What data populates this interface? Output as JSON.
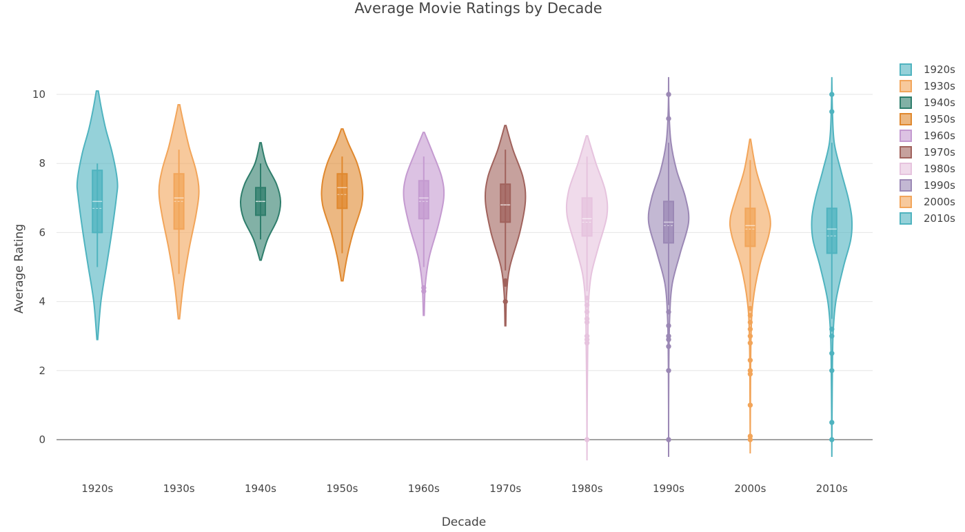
{
  "chart_data": {
    "type": "violin",
    "title": "Average Movie Ratings by Decade",
    "xlabel": "Decade",
    "ylabel": "Average Rating",
    "ylim": [
      -1,
      11
    ],
    "yticks": [
      0,
      2,
      4,
      6,
      8,
      10
    ],
    "grid": true,
    "legend_position": "right",
    "categories": [
      "1920s",
      "1930s",
      "1940s",
      "1950s",
      "1960s",
      "1970s",
      "1980s",
      "1990s",
      "2000s",
      "2010s"
    ],
    "series": [
      {
        "name": "1920s",
        "color": "#4fb3bf",
        "min": 2.9,
        "max": 10.1,
        "q1": 6.0,
        "median": 6.9,
        "q3": 7.8,
        "mean": 6.7,
        "whisker_low": 5.0,
        "whisker_high": 8.0,
        "density": [
          [
            2.9,
            0.02
          ],
          [
            4.0,
            0.18
          ],
          [
            5.0,
            0.45
          ],
          [
            6.0,
            0.72
          ],
          [
            7.0,
            0.95
          ],
          [
            7.5,
            1.0
          ],
          [
            8.3,
            0.75
          ],
          [
            9.0,
            0.42
          ],
          [
            9.6,
            0.2
          ],
          [
            10.1,
            0.05
          ]
        ],
        "outliers": []
      },
      {
        "name": "1930s",
        "color": "#f2a55a",
        "min": 3.5,
        "max": 9.7,
        "q1": 6.1,
        "median": 7.0,
        "q3": 7.7,
        "mean": 6.9,
        "whisker_low": 4.8,
        "whisker_high": 8.4,
        "density": [
          [
            3.5,
            0.03
          ],
          [
            4.5,
            0.22
          ],
          [
            5.5,
            0.5
          ],
          [
            6.5,
            0.85
          ],
          [
            7.2,
            1.0
          ],
          [
            7.8,
            0.85
          ],
          [
            8.5,
            0.5
          ],
          [
            9.2,
            0.22
          ],
          [
            9.7,
            0.04
          ]
        ],
        "outliers": []
      },
      {
        "name": "1940s",
        "color": "#2e7d6b",
        "min": 5.2,
        "max": 8.6,
        "q1": 6.5,
        "median": 6.9,
        "q3": 7.3,
        "mean": 6.9,
        "whisker_low": 5.8,
        "whisker_high": 8.0,
        "density": [
          [
            5.2,
            0.03
          ],
          [
            5.8,
            0.35
          ],
          [
            6.4,
            0.85
          ],
          [
            6.9,
            1.0
          ],
          [
            7.4,
            0.8
          ],
          [
            8.0,
            0.28
          ],
          [
            8.6,
            0.03
          ]
        ],
        "outliers": []
      },
      {
        "name": "1950s",
        "color": "#e0882e",
        "min": 4.6,
        "max": 9.0,
        "q1": 6.7,
        "median": 7.3,
        "q3": 7.7,
        "mean": 7.1,
        "whisker_low": 5.4,
        "whisker_high": 8.2,
        "density": [
          [
            4.6,
            0.04
          ],
          [
            5.3,
            0.25
          ],
          [
            6.0,
            0.55
          ],
          [
            6.8,
            0.98
          ],
          [
            7.4,
            1.0
          ],
          [
            8.0,
            0.75
          ],
          [
            8.6,
            0.3
          ],
          [
            9.0,
            0.04
          ]
        ],
        "outliers": []
      },
      {
        "name": "1960s",
        "color": "#c49ad0",
        "min": 3.6,
        "max": 8.9,
        "q1": 6.4,
        "median": 7.0,
        "q3": 7.5,
        "mean": 6.9,
        "whisker_low": 5.0,
        "whisker_high": 8.2,
        "density": [
          [
            3.6,
            0.02
          ],
          [
            4.5,
            0.08
          ],
          [
            5.3,
            0.28
          ],
          [
            6.2,
            0.72
          ],
          [
            7.0,
            1.0
          ],
          [
            7.6,
            0.9
          ],
          [
            8.3,
            0.45
          ],
          [
            8.9,
            0.03
          ]
        ],
        "outliers": [
          4.4,
          4.3
        ]
      },
      {
        "name": "1970s",
        "color": "#a0625c",
        "min": 3.3,
        "max": 9.1,
        "q1": 6.3,
        "median": 6.8,
        "q3": 7.4,
        "mean": 6.8,
        "whisker_low": 4.9,
        "whisker_high": 8.4,
        "density": [
          [
            3.3,
            0.02
          ],
          [
            4.2,
            0.06
          ],
          [
            5.0,
            0.22
          ],
          [
            6.0,
            0.72
          ],
          [
            6.9,
            1.0
          ],
          [
            7.6,
            0.88
          ],
          [
            8.4,
            0.38
          ],
          [
            9.1,
            0.03
          ]
        ],
        "outliers": [
          4.6,
          4.5,
          4.0
        ]
      },
      {
        "name": "1980s",
        "color": "#e6c3de",
        "min": -0.6,
        "max": 8.8,
        "q1": 5.9,
        "median": 6.4,
        "q3": 7.0,
        "mean": 6.3,
        "whisker_low": 4.3,
        "whisker_high": 8.2,
        "density": [
          [
            -0.6,
            0.0
          ],
          [
            1.0,
            0.01
          ],
          [
            2.8,
            0.04
          ],
          [
            4.0,
            0.08
          ],
          [
            4.8,
            0.22
          ],
          [
            5.6,
            0.58
          ],
          [
            6.5,
            1.0
          ],
          [
            7.2,
            0.92
          ],
          [
            8.0,
            0.45
          ],
          [
            8.8,
            0.03
          ]
        ],
        "outliers": [
          0.0,
          2.8,
          2.9,
          3.0,
          3.4,
          3.5,
          3.7,
          3.9,
          4.1
        ]
      },
      {
        "name": "1990s",
        "color": "#9b88b5",
        "min": -0.5,
        "max": 10.5,
        "q1": 5.7,
        "median": 6.3,
        "q3": 6.9,
        "mean": 6.2,
        "whisker_low": 3.9,
        "whisker_high": 8.6,
        "density": [
          [
            -0.5,
            0.0
          ],
          [
            2.0,
            0.01
          ],
          [
            3.5,
            0.05
          ],
          [
            4.5,
            0.18
          ],
          [
            5.4,
            0.58
          ],
          [
            6.3,
            1.0
          ],
          [
            7.0,
            0.85
          ],
          [
            7.8,
            0.4
          ],
          [
            8.6,
            0.12
          ],
          [
            9.5,
            0.02
          ],
          [
            10.5,
            0.0
          ]
        ],
        "outliers": [
          0.0,
          2.0,
          2.7,
          2.9,
          3.0,
          3.3,
          3.7,
          10.0,
          9.3
        ]
      },
      {
        "name": "2000s",
        "color": "#f2a55a",
        "min": -0.4,
        "max": 8.7,
        "q1": 5.6,
        "median": 6.2,
        "q3": 6.7,
        "mean": 6.1,
        "whisker_low": 4.0,
        "whisker_high": 8.1,
        "density": [
          [
            -0.4,
            0.0
          ],
          [
            1.0,
            0.01
          ],
          [
            3.0,
            0.04
          ],
          [
            4.0,
            0.14
          ],
          [
            5.0,
            0.45
          ],
          [
            5.9,
            0.92
          ],
          [
            6.4,
            1.0
          ],
          [
            7.0,
            0.72
          ],
          [
            7.8,
            0.3
          ],
          [
            8.7,
            0.02
          ]
        ],
        "outliers": [
          0.0,
          0.1,
          1.0,
          1.9,
          2.0,
          2.3,
          2.8,
          3.0,
          3.2,
          3.4,
          3.6,
          3.8
        ]
      },
      {
        "name": "2010s",
        "color": "#4fb3bf",
        "min": -0.5,
        "max": 10.5,
        "q1": 5.4,
        "median": 6.1,
        "q3": 6.7,
        "mean": 5.9,
        "whisker_low": 3.5,
        "whisker_high": 8.6,
        "density": [
          [
            -0.5,
            0.0
          ],
          [
            1.5,
            0.02
          ],
          [
            3.0,
            0.06
          ],
          [
            4.0,
            0.2
          ],
          [
            5.0,
            0.58
          ],
          [
            5.8,
            0.95
          ],
          [
            6.4,
            1.0
          ],
          [
            7.0,
            0.82
          ],
          [
            7.8,
            0.45
          ],
          [
            8.6,
            0.12
          ],
          [
            9.5,
            0.03
          ],
          [
            10.5,
            0.0
          ]
        ],
        "outliers": [
          0.0,
          0.5,
          2.0,
          2.5,
          3.0,
          3.2,
          9.5,
          10.0
        ]
      }
    ]
  }
}
